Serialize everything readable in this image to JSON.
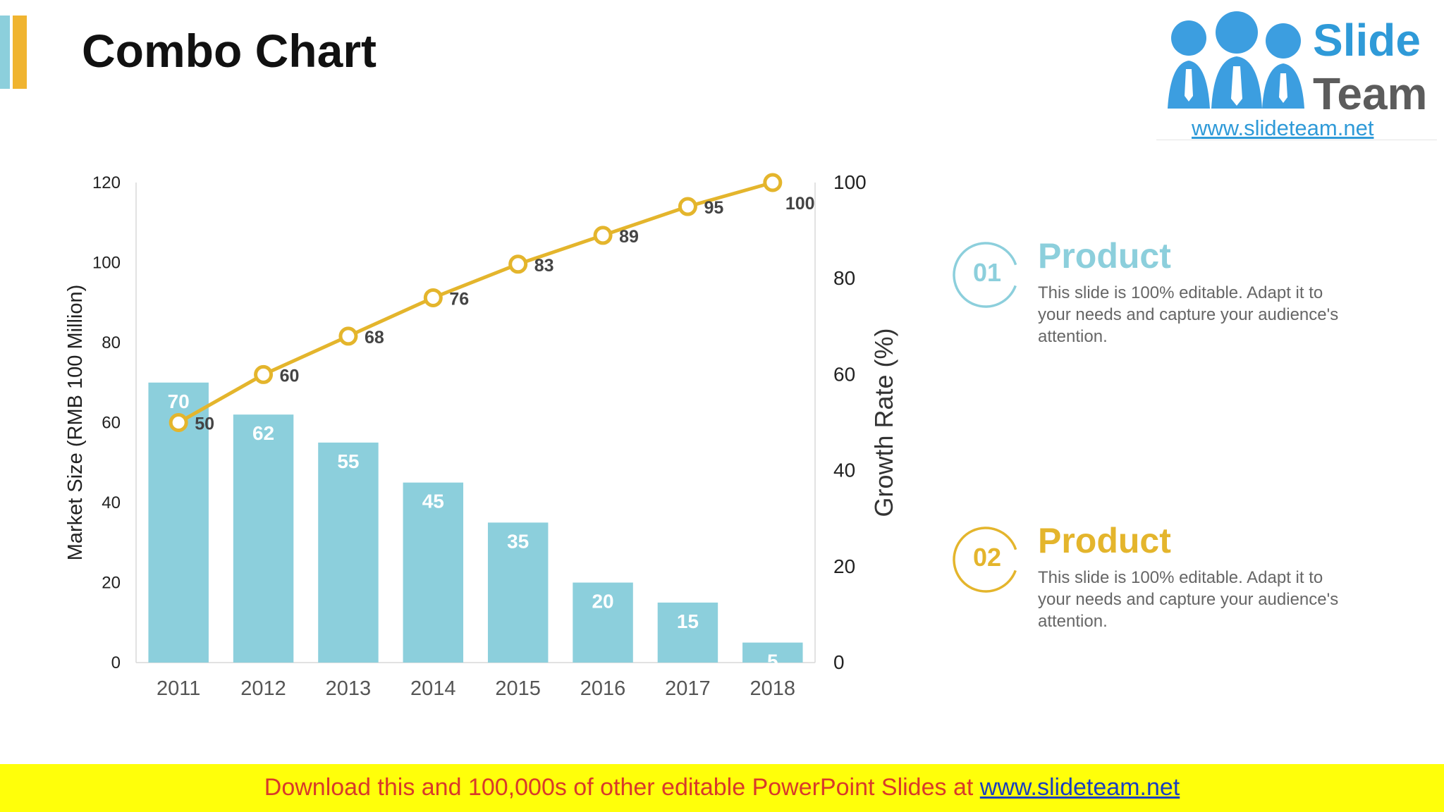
{
  "slide": {
    "title": "Combo Chart"
  },
  "logo": {
    "word1": "Slide",
    "word2": "Team",
    "url": "www.slideteam.net"
  },
  "chart_data": {
    "type": "bar",
    "categories": [
      "2011",
      "2012",
      "2013",
      "2014",
      "2015",
      "2016",
      "2017",
      "2018"
    ],
    "series": [
      {
        "type": "bar",
        "axis": "left",
        "values": [
          70,
          62,
          55,
          45,
          35,
          20,
          15,
          5
        ],
        "color": "#8ccfdc"
      },
      {
        "type": "line",
        "axis": "right",
        "values": [
          50,
          60,
          68,
          76,
          83,
          89,
          95,
          100
        ],
        "color": "#e4b52c"
      }
    ],
    "ylabel": "Market Size (RMB 100 Million)",
    "y2label": "Growth Rate (%)",
    "ylim": [
      0,
      120
    ],
    "y2lim": [
      0,
      100
    ],
    "yticks": [
      0,
      20,
      40,
      60,
      80,
      100,
      120
    ],
    "y2ticks": [
      0,
      20,
      40,
      60,
      80,
      100
    ],
    "grid": false,
    "legend": "none"
  },
  "items": [
    {
      "number": "01",
      "title": "Product",
      "text": "This slide is 100% editable. Adapt it to your needs and capture your audience's attention.",
      "color": "#8ccfdc"
    },
    {
      "number": "02",
      "title": "Product",
      "text": "This slide is 100% editable. Adapt it to your needs and capture your audience's attention.",
      "color": "#e4b52c"
    }
  ],
  "footer": {
    "text": "Download this and 100,000s of other editable PowerPoint Slides at ",
    "link": "www.slideteam.net"
  }
}
